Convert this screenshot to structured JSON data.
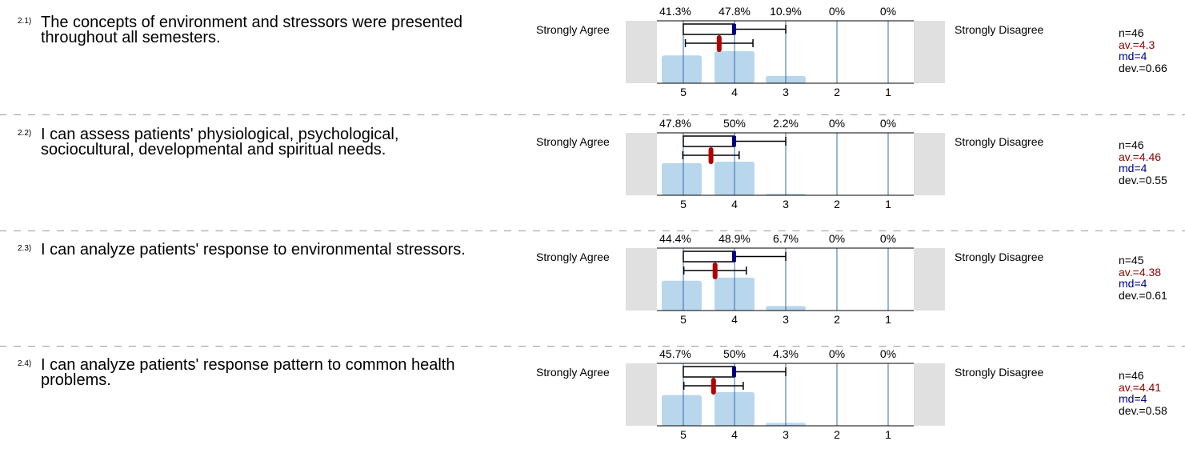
{
  "scale": {
    "left_label": "Strongly Agree",
    "right_label": "Strongly Disagree",
    "tick_labels": [
      "5",
      "4",
      "3",
      "2",
      "1"
    ]
  },
  "colors": {
    "bar": "#b8d6ec",
    "gridline": "#2f6fa8",
    "mean": "#b00000",
    "median": "#000080",
    "av_text": "#8b0000",
    "md_text": "#00008b",
    "side_panel": "#e0e0e0"
  },
  "items": [
    {
      "number": "2.1)",
      "question": "The concepts of environment and stressors were presented throughout all semesters.",
      "percent_labels": [
        "41.3%",
        "47.8%",
        "10.9%",
        "0%",
        "0%"
      ],
      "n_text": "n=46",
      "av_text": "av.=4.3",
      "md_text": "md=4",
      "dev_text": "dev.=0.66"
    },
    {
      "number": "2.2)",
      "question": "I can assess patients' physiological, psychological, sociocultural, developmental and spiritual needs.",
      "percent_labels": [
        "47.8%",
        "50%",
        "2.2%",
        "0%",
        "0%"
      ],
      "n_text": "n=46",
      "av_text": "av.=4.46",
      "md_text": "md=4",
      "dev_text": "dev.=0.55"
    },
    {
      "number": "2.3)",
      "question": "I can analyze patients' response to environmental stressors.",
      "percent_labels": [
        "44.4%",
        "48.9%",
        "6.7%",
        "0%",
        "0%"
      ],
      "n_text": "n=45",
      "av_text": "av.=4.38",
      "md_text": "md=4",
      "dev_text": "dev.=0.61"
    },
    {
      "number": "2.4)",
      "question": "I can analyze patients' response pattern to common health problems.",
      "percent_labels": [
        "45.7%",
        "50%",
        "4.3%",
        "0%",
        "0%"
      ],
      "n_text": "n=46",
      "av_text": "av.=4.41",
      "md_text": "md=4",
      "dev_text": "dev.=0.58"
    }
  ],
  "chart_data": [
    {
      "type": "bar",
      "categories": [
        "5",
        "4",
        "3",
        "2",
        "1"
      ],
      "values": [
        41.3,
        47.8,
        10.9,
        0,
        0
      ],
      "n": 46,
      "mean": 4.3,
      "median": 4,
      "std_dev": 0.66,
      "box": {
        "q1": 4,
        "q3": 5,
        "min": 3,
        "max": 5
      },
      "mean_interval": [
        3.64,
        4.96
      ]
    },
    {
      "type": "bar",
      "categories": [
        "5",
        "4",
        "3",
        "2",
        "1"
      ],
      "values": [
        47.8,
        50,
        2.2,
        0,
        0
      ],
      "n": 46,
      "mean": 4.46,
      "median": 4,
      "std_dev": 0.55,
      "box": {
        "q1": 4,
        "q3": 5,
        "min": 3,
        "max": 5
      },
      "mean_interval": [
        3.91,
        5.01
      ]
    },
    {
      "type": "bar",
      "categories": [
        "5",
        "4",
        "3",
        "2",
        "1"
      ],
      "values": [
        44.4,
        48.9,
        6.7,
        0,
        0
      ],
      "n": 45,
      "mean": 4.38,
      "median": 4,
      "std_dev": 0.61,
      "box": {
        "q1": 4,
        "q3": 5,
        "min": 3,
        "max": 5
      },
      "mean_interval": [
        3.77,
        4.99
      ]
    },
    {
      "type": "bar",
      "categories": [
        "5",
        "4",
        "3",
        "2",
        "1"
      ],
      "values": [
        45.7,
        50,
        4.3,
        0,
        0
      ],
      "n": 46,
      "mean": 4.41,
      "median": 4,
      "std_dev": 0.58,
      "box": {
        "q1": 4,
        "q3": 5,
        "min": 3,
        "max": 5
      },
      "mean_interval": [
        3.83,
        4.99
      ]
    }
  ]
}
